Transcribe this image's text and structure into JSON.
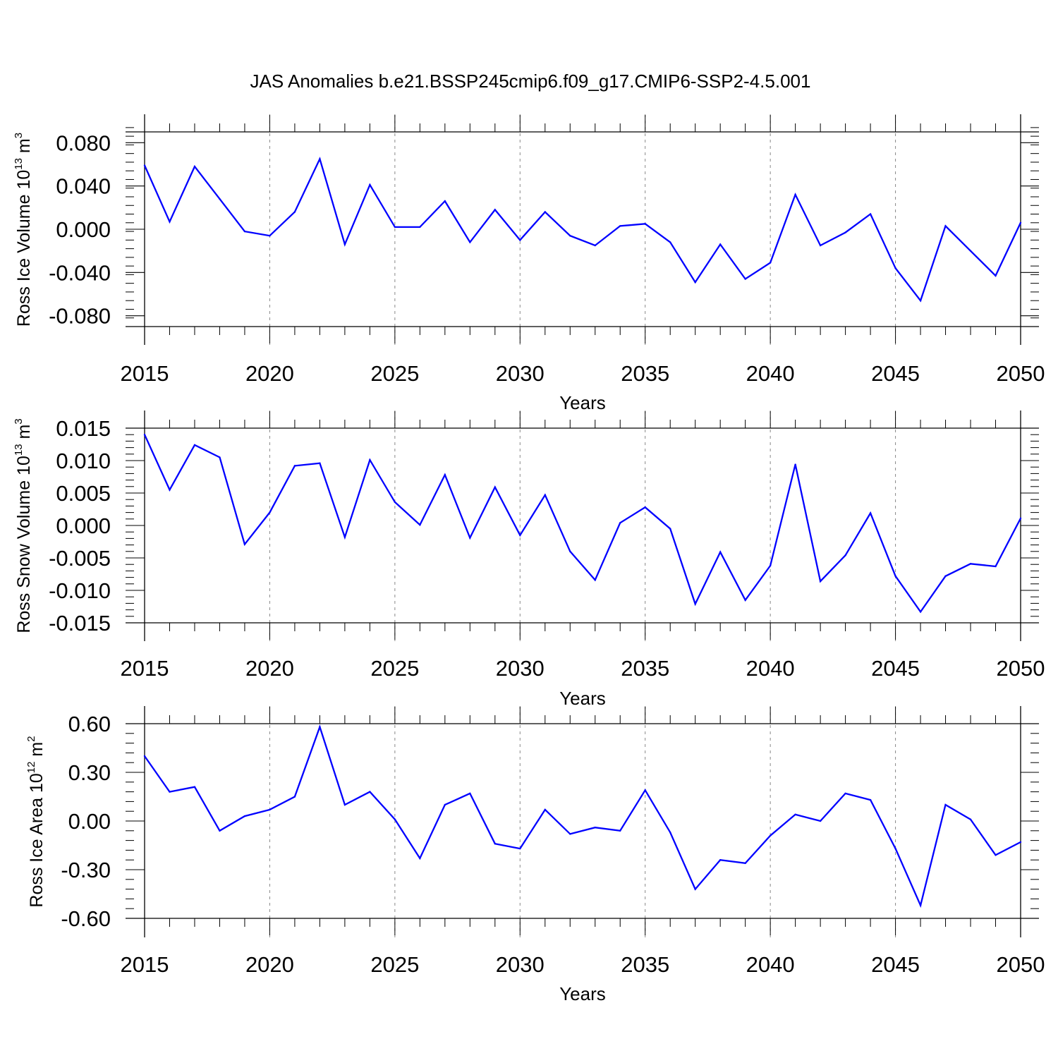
{
  "chart_data": {
    "type": "line",
    "title": "JAS Anomalies b.e21.BSSP245cmip6.f09_g17.CMIP6-SSP2-4.5.001",
    "series_color": "#0000ff",
    "x": [
      2015,
      2016,
      2017,
      2018,
      2019,
      2020,
      2021,
      2022,
      2023,
      2024,
      2025,
      2026,
      2027,
      2028,
      2029,
      2030,
      2031,
      2032,
      2033,
      2034,
      2035,
      2036,
      2037,
      2038,
      2039,
      2040,
      2041,
      2042,
      2043,
      2044,
      2045,
      2046,
      2047,
      2048,
      2049,
      2050
    ],
    "panels": [
      {
        "ylabel_main": "Ross Ice Volume 10",
        "ylabel_exp": "13",
        "ylabel_unit": " m",
        "ylabel_unit_exp": "3",
        "xlabel": "Years",
        "xlim": [
          2015,
          2050
        ],
        "ylim": [
          -0.09,
          0.09
        ],
        "yticks": [
          0.08,
          0.04,
          0.0,
          -0.04,
          -0.08
        ],
        "yticklabels": [
          "0.080",
          "0.040",
          "0.000",
          "-0.040",
          "-0.080"
        ],
        "xticks": [
          2015,
          2020,
          2025,
          2030,
          2035,
          2040,
          2045,
          2050
        ],
        "xticklabels": [
          "2015",
          "2020",
          "2025",
          "2030",
          "2035",
          "2040",
          "2045",
          "2050"
        ],
        "values": [
          0.059,
          0.007,
          0.058,
          0.028,
          -0.002,
          -0.006,
          0.016,
          0.065,
          -0.014,
          0.041,
          0.002,
          0.002,
          0.026,
          -0.012,
          0.018,
          -0.01,
          0.016,
          -0.006,
          -0.015,
          0.003,
          0.005,
          -0.012,
          -0.049,
          -0.014,
          -0.046,
          -0.031,
          0.032,
          -0.015,
          -0.003,
          0.014,
          -0.036,
          -0.066,
          0.003,
          -0.02,
          -0.043,
          0.006
        ]
      },
      {
        "ylabel_main": "Ross Snow Volume 10",
        "ylabel_exp": "13",
        "ylabel_unit": " m",
        "ylabel_unit_exp": "3",
        "xlabel": "Years",
        "xlim": [
          2015,
          2050
        ],
        "ylim": [
          -0.015,
          0.015
        ],
        "yticks": [
          0.015,
          0.01,
          0.005,
          0.0,
          -0.005,
          -0.01,
          -0.015
        ],
        "yticklabels": [
          "0.015",
          "0.010",
          "0.005",
          "0.000",
          "-0.005",
          "-0.010",
          "-0.015"
        ],
        "xticks": [
          2015,
          2020,
          2025,
          2030,
          2035,
          2040,
          2045,
          2050
        ],
        "xticklabels": [
          "2015",
          "2020",
          "2025",
          "2030",
          "2035",
          "2040",
          "2045",
          "2050"
        ],
        "values": [
          0.014,
          0.0055,
          0.0124,
          0.0105,
          -0.0029,
          0.002,
          0.0092,
          0.0096,
          -0.0018,
          0.0101,
          0.0036,
          0.0001,
          0.0078,
          -0.0019,
          0.0059,
          -0.0015,
          0.0047,
          -0.004,
          -0.0084,
          0.0004,
          0.0028,
          -0.0005,
          -0.0121,
          -0.0041,
          -0.0115,
          -0.0062,
          0.0094,
          -0.0086,
          -0.0046,
          0.0019,
          -0.0078,
          -0.0133,
          -0.0078,
          -0.0059,
          -0.0063,
          0.0011
        ]
      },
      {
        "ylabel_main": "Ross Ice Area 10",
        "ylabel_exp": "12",
        "ylabel_unit": " m",
        "ylabel_unit_exp": "2",
        "xlabel": "Years",
        "xlim": [
          2015,
          2050
        ],
        "ylim": [
          -0.6,
          0.6
        ],
        "yticks": [
          0.6,
          0.3,
          0.0,
          -0.3,
          -0.6
        ],
        "yticklabels": [
          "0.60",
          "0.30",
          "0.00",
          "-0.30",
          "-0.60"
        ],
        "xticks": [
          2015,
          2020,
          2025,
          2030,
          2035,
          2040,
          2045,
          2050
        ],
        "xticklabels": [
          "2015",
          "2020",
          "2025",
          "2030",
          "2035",
          "2040",
          "2045",
          "2050"
        ],
        "values": [
          0.4,
          0.18,
          0.21,
          -0.06,
          0.03,
          0.07,
          0.15,
          0.58,
          0.1,
          0.18,
          0.01,
          -0.23,
          0.1,
          0.17,
          -0.14,
          -0.17,
          0.07,
          -0.08,
          -0.04,
          -0.06,
          0.19,
          -0.07,
          -0.42,
          -0.24,
          -0.26,
          -0.09,
          0.04,
          0.0,
          0.17,
          0.13,
          -0.17,
          -0.52,
          0.1,
          0.01,
          -0.21,
          -0.13
        ]
      }
    ]
  }
}
